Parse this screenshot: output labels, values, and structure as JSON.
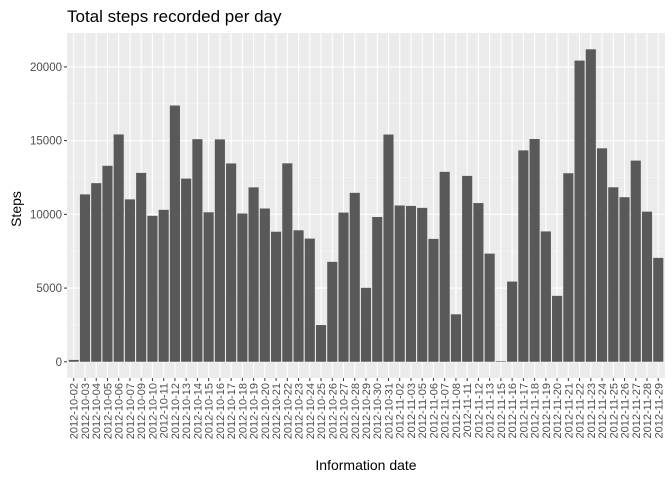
{
  "chart_data": {
    "type": "bar",
    "title": "Total steps recorded per day",
    "xlabel": "Information date",
    "ylabel": "Steps",
    "ylim": [
      -1100,
      22300
    ],
    "yticks": [
      0,
      5000,
      10000,
      15000,
      20000
    ],
    "grid": true,
    "legend": "none",
    "categories": [
      "2012-10-02",
      "2012-10-03",
      "2012-10-04",
      "2012-10-05",
      "2012-10-06",
      "2012-10-07",
      "2012-10-09",
      "2012-10-10",
      "2012-10-11",
      "2012-10-12",
      "2012-10-13",
      "2012-10-14",
      "2012-10-15",
      "2012-10-16",
      "2012-10-17",
      "2012-10-18",
      "2012-10-19",
      "2012-10-20",
      "2012-10-21",
      "2012-10-22",
      "2012-10-23",
      "2012-10-24",
      "2012-10-25",
      "2012-10-26",
      "2012-10-27",
      "2012-10-28",
      "2012-10-29",
      "2012-10-30",
      "2012-10-31",
      "2012-11-02",
      "2012-11-03",
      "2012-11-05",
      "2012-11-06",
      "2012-11-07",
      "2012-11-08",
      "2012-11-11",
      "2012-11-12",
      "2012-11-13",
      "2012-11-15",
      "2012-11-16",
      "2012-11-17",
      "2012-11-18",
      "2012-11-19",
      "2012-11-20",
      "2012-11-21",
      "2012-11-22",
      "2012-11-23",
      "2012-11-24",
      "2012-11-25",
      "2012-11-26",
      "2012-11-27",
      "2012-11-28",
      "2012-11-29"
    ],
    "values": [
      126,
      11352,
      12116,
      13294,
      15420,
      11015,
      12811,
      9900,
      10304,
      17382,
      12426,
      15098,
      10139,
      15084,
      13452,
      10056,
      11829,
      10395,
      8821,
      13460,
      8918,
      8355,
      2492,
      6778,
      10119,
      11458,
      5018,
      9819,
      15414,
      10600,
      10571,
      10439,
      8334,
      12883,
      3219,
      12608,
      10765,
      7336,
      41,
      5441,
      14339,
      15110,
      8841,
      4472,
      12787,
      20427,
      21194,
      14478,
      11834,
      11162,
      13646,
      10183,
      7047
    ]
  },
  "colors": {
    "panel_background": "#ebebeb",
    "grid_major": "#ffffff",
    "grid_minor": "#f5f5f5",
    "bar_fill": "#595959",
    "tick_text": "#4d4d4d",
    "tick_mark": "#333333"
  }
}
